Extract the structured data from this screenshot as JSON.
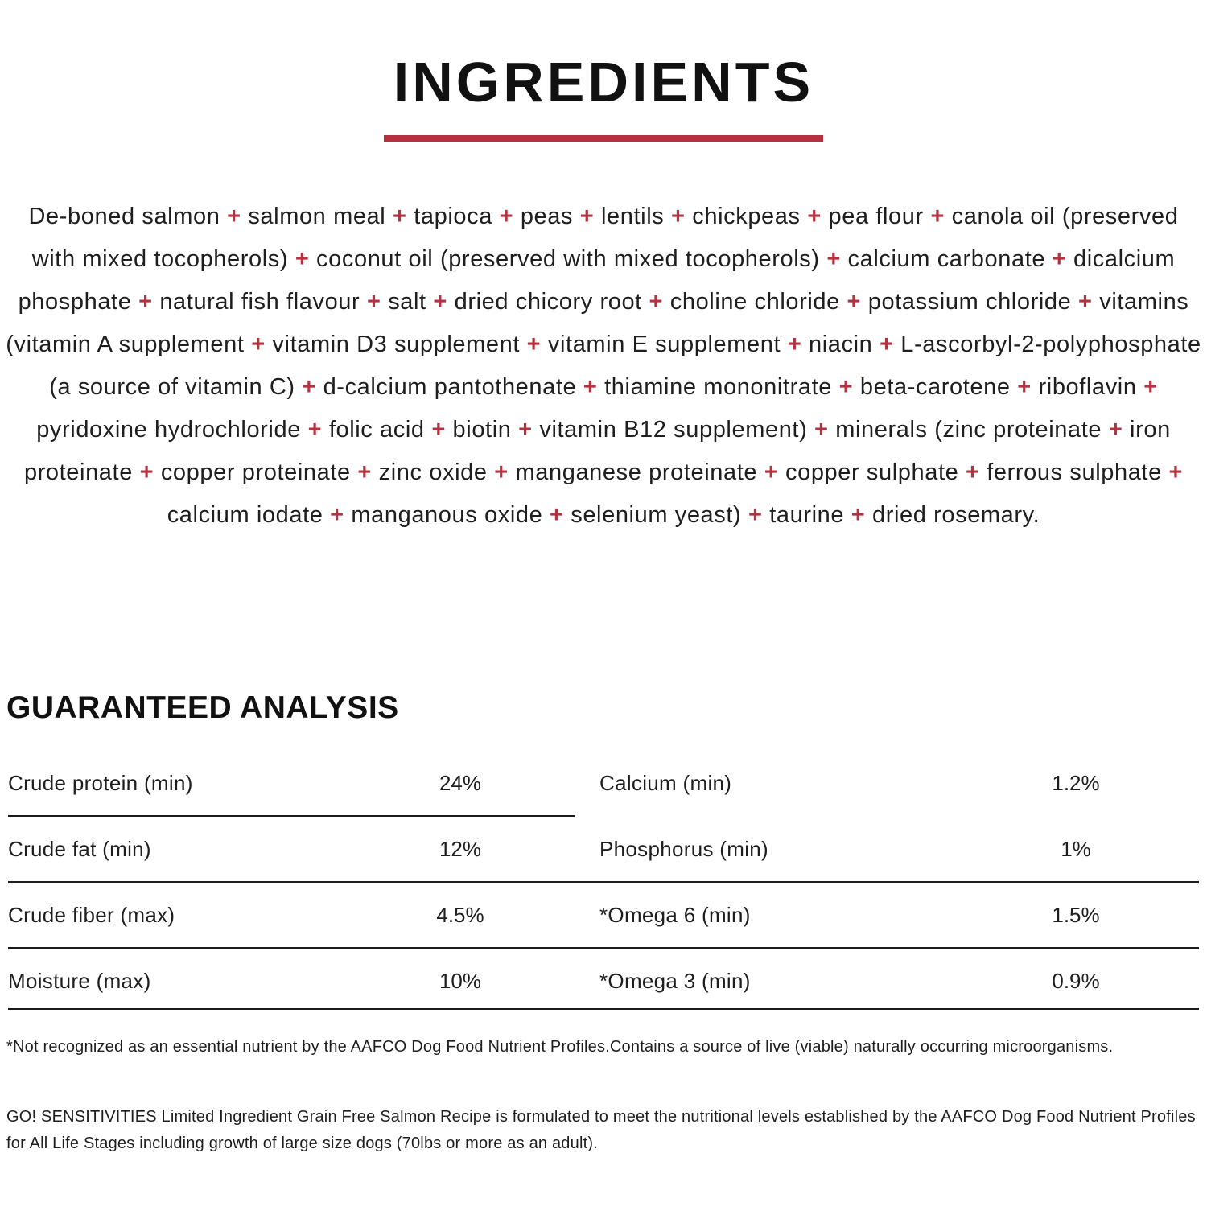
{
  "colors": {
    "accent_red": "#b5313f",
    "text_black": "#1c1c1c"
  },
  "header": {
    "title": "INGREDIENTS"
  },
  "ingredients": {
    "separator": "+",
    "items": [
      "De-boned salmon",
      "salmon meal",
      "tapioca",
      "peas",
      "lentils",
      "chickpeas",
      "pea flour",
      "canola oil (preserved with mixed tocopherols)",
      "coconut oil (preserved with mixed tocopherols)",
      "calcium carbonate",
      "dicalcium phosphate",
      "natural fish flavour",
      "salt",
      "dried chicory root",
      "choline chloride",
      "potassium chloride",
      "vitamins (vitamin A supplement",
      "vitamin D3 supplement",
      "vitamin E supplement",
      "niacin",
      "L-ascorbyl-2-polyphosphate (a source of vitamin C)",
      "d-calcium pantothenate",
      "thiamine mononitrate",
      "beta-carotene",
      "riboflavin",
      "pyridoxine hydrochloride",
      "folic acid",
      "biotin",
      "vitamin B12 supplement)",
      "minerals (zinc proteinate",
      "iron proteinate",
      "copper proteinate",
      "zinc oxide",
      "manganese proteinate",
      "copper sulphate",
      "ferrous sulphate",
      "calcium iodate",
      "manganous oxide",
      "selenium yeast)",
      "taurine",
      "dried rosemary."
    ]
  },
  "analysis": {
    "heading": "GUARANTEED ANALYSIS",
    "left_rows": [
      {
        "label": "Crude protein (min)",
        "value": "24%"
      },
      {
        "label": "Crude fat (min)",
        "value": "12%"
      },
      {
        "label": "Crude fiber (max)",
        "value": "4.5%"
      },
      {
        "label": "Moisture (max)",
        "value": "10%"
      }
    ],
    "right_rows": [
      {
        "label": "Calcium (min)",
        "value": "1.2%"
      },
      {
        "label": "Phosphorus (min)",
        "value": "1%"
      },
      {
        "label": "*Omega 6 (min)",
        "value": "1.5%"
      },
      {
        "label": "*Omega 3 (min)",
        "value": "0.9%"
      }
    ]
  },
  "footnotes": {
    "aafco_note": "*Not recognized as an essential nutrient by the AAFCO Dog Food Nutrient Profiles.Contains a source of live (viable) naturally occurring microorganisms.",
    "formulation_note": "GO! SENSITIVITIES Limited Ingredient Grain Free Salmon Recipe is formulated to meet the nutritional levels established by the AAFCO Dog Food Nutrient Profiles for All Life Stages including growth of large size dogs (70lbs or more as an adult)."
  }
}
